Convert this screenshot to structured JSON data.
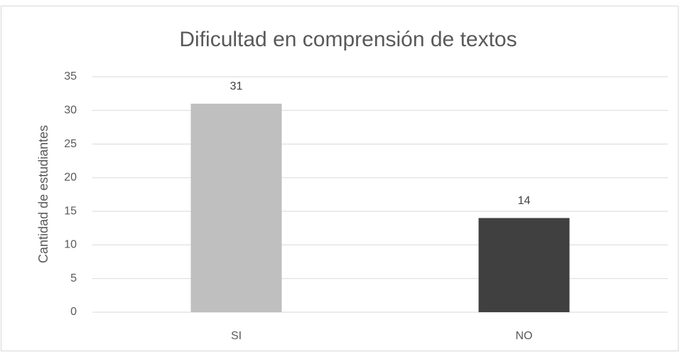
{
  "chart_data": {
    "type": "bar",
    "title": "Dificultad en comprensión de textos",
    "y_label": "Cantidad de estudiantes",
    "categories": [
      "SI",
      "NO"
    ],
    "values": [
      31,
      14
    ],
    "colors": [
      "#bfbfbf",
      "#404040"
    ],
    "ylim": [
      0,
      35
    ],
    "yticks": [
      0,
      5,
      10,
      15,
      20,
      25,
      30,
      35
    ],
    "grid": true
  }
}
